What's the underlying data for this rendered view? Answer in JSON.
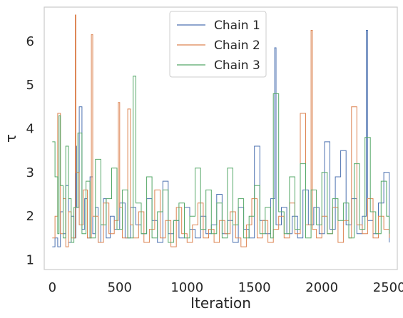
{
  "chart_data": {
    "type": "line",
    "title": "",
    "xlabel": "Iteration",
    "ylabel": "τ",
    "xlim": [
      -60,
      2560
    ],
    "ylim": [
      0.78,
      6.78
    ],
    "x_ticks": [
      0,
      500,
      1000,
      1500,
      2000,
      2500
    ],
    "y_ticks": [
      1,
      2,
      3,
      4,
      5,
      6
    ],
    "grid": false,
    "legend_position": "top-center",
    "series": [
      {
        "name": "Chain 1",
        "color": "#4c72b0",
        "x": [
          0,
          20,
          40,
          60,
          80,
          100,
          120,
          140,
          160,
          175,
          180,
          200,
          220,
          240,
          260,
          280,
          300,
          320,
          340,
          360,
          380,
          400,
          430,
          460,
          500,
          540,
          580,
          620,
          660,
          700,
          740,
          780,
          820,
          860,
          900,
          940,
          980,
          1020,
          1060,
          1100,
          1140,
          1180,
          1220,
          1260,
          1300,
          1340,
          1380,
          1420,
          1460,
          1500,
          1540,
          1580,
          1620,
          1650,
          1660,
          1700,
          1740,
          1780,
          1820,
          1860,
          1900,
          1940,
          1980,
          2020,
          2060,
          2100,
          2140,
          2180,
          2220,
          2260,
          2300,
          2330,
          2340,
          2380,
          2420,
          2460,
          2500
        ],
        "values": [
          1.3,
          1.5,
          1.3,
          2.1,
          1.6,
          2.7,
          1.4,
          2.0,
          1.5,
          3.6,
          2.2,
          4.5,
          1.7,
          2.4,
          1.5,
          2.9,
          1.6,
          2.2,
          1.4,
          1.8,
          2.4,
          1.5,
          2.0,
          1.7,
          2.3,
          1.5,
          2.2,
          1.8,
          1.6,
          2.4,
          1.9,
          1.4,
          2.8,
          1.6,
          1.9,
          1.5,
          2.2,
          1.7,
          1.5,
          2.0,
          1.6,
          1.8,
          2.5,
          1.6,
          1.9,
          1.4,
          2.2,
          1.7,
          1.5,
          3.6,
          1.9,
          1.6,
          2.4,
          5.85,
          1.8,
          2.2,
          1.6,
          2.0,
          1.5,
          2.6,
          1.8,
          2.2,
          1.6,
          3.7,
          1.7,
          2.9,
          3.5,
          1.8,
          2.4,
          1.6,
          2.0,
          6.25,
          1.9,
          1.6,
          2.3,
          3.0,
          1.4
        ]
      },
      {
        "name": "Chain 2",
        "color": "#dd8452",
        "x": [
          0,
          20,
          40,
          60,
          80,
          100,
          120,
          140,
          170,
          175,
          200,
          230,
          260,
          290,
          300,
          340,
          380,
          420,
          460,
          490,
          500,
          520,
          560,
          580,
          600,
          640,
          680,
          720,
          760,
          800,
          840,
          880,
          920,
          960,
          1000,
          1040,
          1080,
          1120,
          1160,
          1200,
          1240,
          1280,
          1320,
          1360,
          1400,
          1440,
          1480,
          1520,
          1560,
          1600,
          1640,
          1680,
          1720,
          1760,
          1800,
          1840,
          1880,
          1920,
          1930,
          1960,
          2000,
          2040,
          2080,
          2120,
          2160,
          2200,
          2220,
          2260,
          2300,
          2340,
          2380,
          2420,
          2460,
          2500
        ],
        "values": [
          1.5,
          2.0,
          4.35,
          1.6,
          2.4,
          1.3,
          2.1,
          1.5,
          6.6,
          3.0,
          1.8,
          2.6,
          1.5,
          6.15,
          2.0,
          1.4,
          2.3,
          1.6,
          1.9,
          4.6,
          2.2,
          1.5,
          4.45,
          1.8,
          1.5,
          2.1,
          1.4,
          1.7,
          2.6,
          1.5,
          1.9,
          1.3,
          2.2,
          1.6,
          1.4,
          1.8,
          2.3,
          1.5,
          1.7,
          1.4,
          1.9,
          1.6,
          2.1,
          1.5,
          1.3,
          1.8,
          2.4,
          1.5,
          1.9,
          1.4,
          1.7,
          2.0,
          1.5,
          2.3,
          1.6,
          4.35,
          1.8,
          6.25,
          1.7,
          1.5,
          2.0,
          1.6,
          2.2,
          1.4,
          1.9,
          1.5,
          4.5,
          1.8,
          1.6,
          2.4,
          1.5,
          2.0,
          1.7,
          1.5
        ]
      },
      {
        "name": "Chain 3",
        "color": "#55a868",
        "x": [
          0,
          20,
          40,
          50,
          60,
          80,
          100,
          120,
          140,
          160,
          190,
          220,
          250,
          280,
          320,
          360,
          400,
          440,
          480,
          520,
          560,
          600,
          620,
          660,
          700,
          740,
          780,
          820,
          860,
          900,
          940,
          980,
          1020,
          1060,
          1100,
          1140,
          1180,
          1220,
          1260,
          1300,
          1340,
          1380,
          1420,
          1460,
          1500,
          1540,
          1580,
          1620,
          1640,
          1680,
          1720,
          1760,
          1800,
          1840,
          1880,
          1920,
          1960,
          2000,
          2040,
          2080,
          2120,
          2160,
          2200,
          2240,
          2280,
          2320,
          2360,
          2400,
          2440,
          2480,
          2500
        ],
        "values": [
          3.7,
          2.9,
          1.6,
          4.3,
          2.7,
          1.5,
          3.6,
          2.4,
          1.4,
          2.2,
          3.9,
          1.6,
          2.8,
          1.5,
          3.3,
          1.8,
          2.4,
          3.1,
          1.7,
          2.6,
          1.5,
          5.2,
          2.3,
          1.6,
          2.9,
          1.5,
          2.1,
          2.6,
          1.4,
          1.9,
          2.3,
          1.5,
          2.0,
          3.1,
          1.7,
          2.6,
          1.6,
          2.3,
          1.5,
          3.1,
          1.8,
          2.4,
          1.5,
          2.0,
          2.7,
          1.6,
          2.2,
          1.5,
          4.8,
          2.1,
          1.6,
          2.9,
          1.7,
          3.2,
          1.5,
          2.6,
          1.8,
          3.0,
          1.6,
          2.4,
          1.9,
          2.3,
          1.5,
          3.2,
          1.7,
          3.8,
          2.1,
          1.6,
          2.8,
          2.0,
          1.6
        ]
      }
    ]
  }
}
